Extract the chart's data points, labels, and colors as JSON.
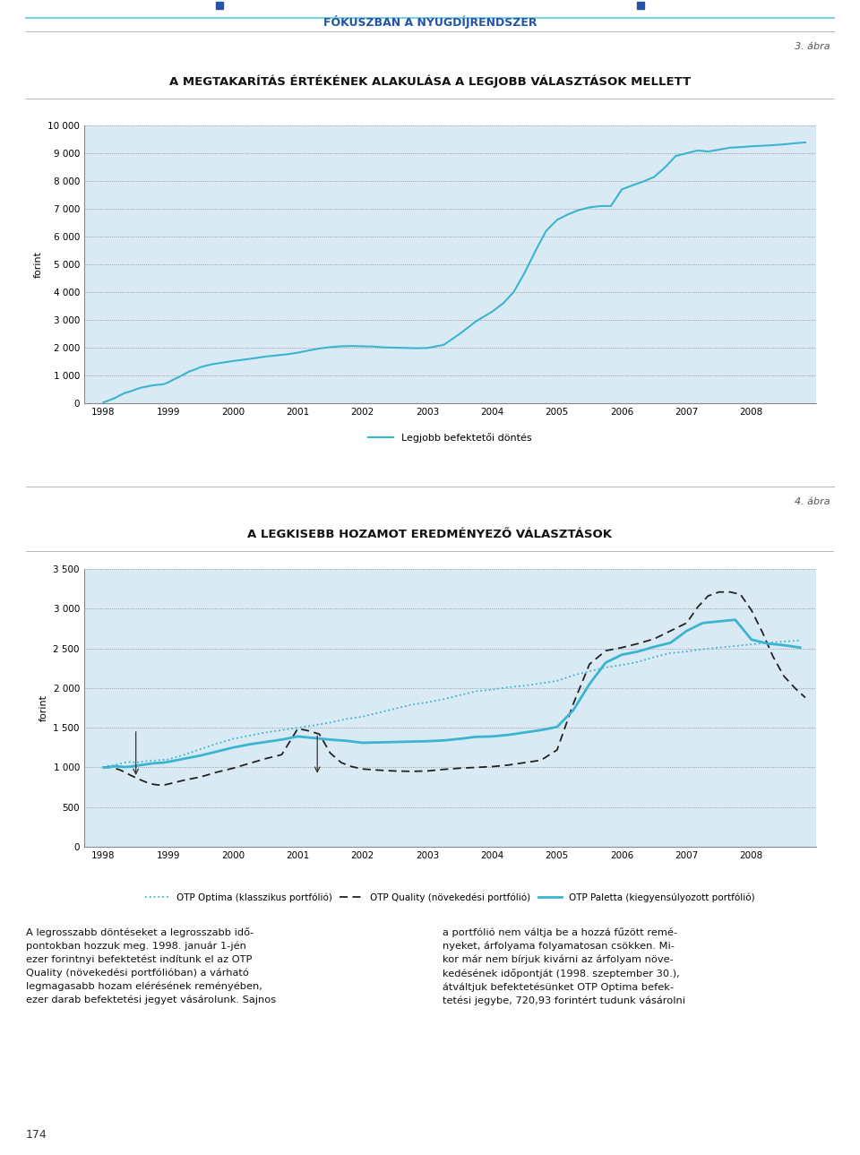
{
  "page_header": "FÓKUSZBAN A NYUGDÍJRENDSZER",
  "fig3_label": "3. ábra",
  "fig3_title": "A MEGTAKARÍTÁS ÉRTÉKÉNEK ALAKULÁSA A LEGJOBB VÁLASZTÁSOK MELLETT",
  "fig4_label": "4. ábra",
  "fig4_title": "A LEGKISEBB HOZAMOT EREDMÉNYEZŐ VÁLASZTÁSOK",
  "ylabel": "forint",
  "chart_bg": "#daeaf5",
  "page_bg": "#ffffff",
  "fig3_ylim": [
    0,
    10000
  ],
  "fig3_yticks": [
    0,
    1000,
    2000,
    3000,
    4000,
    5000,
    6000,
    7000,
    8000,
    9000,
    10000
  ],
  "fig4_ylim": [
    0,
    3500
  ],
  "fig4_yticks": [
    0,
    500,
    1000,
    1500,
    2000,
    2500,
    3000,
    3500
  ],
  "x_years": [
    1998,
    1999,
    2000,
    2001,
    2002,
    2003,
    2004,
    2005,
    2006,
    2007,
    2008
  ],
  "fig3_line_color": "#3ab4d0",
  "fig3_legend_label": "Legjobb befektetői döntés",
  "fig3_data_x": [
    1998.0,
    1998.08,
    1998.17,
    1998.25,
    1998.33,
    1998.42,
    1998.5,
    1998.58,
    1998.67,
    1998.75,
    1998.83,
    1998.92,
    1999.0,
    1999.08,
    1999.17,
    1999.25,
    1999.33,
    1999.42,
    1999.5,
    1999.58,
    1999.67,
    1999.75,
    1999.83,
    1999.92,
    2000.0,
    2000.17,
    2000.33,
    2000.5,
    2000.67,
    2000.83,
    2001.0,
    2001.17,
    2001.33,
    2001.5,
    2001.67,
    2001.83,
    2002.0,
    2002.17,
    2002.33,
    2002.5,
    2002.67,
    2002.83,
    2003.0,
    2003.25,
    2003.5,
    2003.75,
    2004.0,
    2004.17,
    2004.33,
    2004.5,
    2004.67,
    2004.83,
    2005.0,
    2005.17,
    2005.33,
    2005.5,
    2005.67,
    2005.83,
    2006.0,
    2006.17,
    2006.33,
    2006.5,
    2006.67,
    2006.83,
    2007.0,
    2007.17,
    2007.33,
    2007.5,
    2007.67,
    2007.83,
    2008.0,
    2008.17,
    2008.33,
    2008.5,
    2008.67,
    2008.83
  ],
  "fig3_data_y": [
    30,
    100,
    180,
    280,
    370,
    430,
    500,
    560,
    600,
    640,
    660,
    680,
    750,
    850,
    950,
    1050,
    1150,
    1220,
    1300,
    1350,
    1400,
    1430,
    1460,
    1490,
    1520,
    1570,
    1620,
    1680,
    1720,
    1760,
    1820,
    1900,
    1970,
    2020,
    2050,
    2060,
    2050,
    2040,
    2010,
    2000,
    1990,
    1980,
    1990,
    2100,
    2500,
    2950,
    3300,
    3600,
    4000,
    4700,
    5500,
    6200,
    6600,
    6800,
    6950,
    7050,
    7100,
    7100,
    7700,
    7850,
    7980,
    8150,
    8500,
    8900,
    9000,
    9100,
    9060,
    9130,
    9200,
    9220,
    9250,
    9270,
    9290,
    9320,
    9360,
    9390
  ],
  "fig4_optima_x": [
    1998.0,
    1998.08,
    1998.17,
    1998.25,
    1998.33,
    1998.42,
    1998.5,
    1998.58,
    1998.67,
    1998.75,
    1998.83,
    1998.92,
    1999.0,
    1999.25,
    1999.5,
    1999.75,
    2000.0,
    2000.25,
    2000.5,
    2000.75,
    2001.0,
    2001.25,
    2001.5,
    2001.75,
    2002.0,
    2002.25,
    2002.5,
    2002.75,
    2003.0,
    2003.25,
    2003.5,
    2003.75,
    2004.0,
    2004.25,
    2004.5,
    2004.75,
    2005.0,
    2005.25,
    2005.5,
    2005.75,
    2006.0,
    2006.25,
    2006.5,
    2006.75,
    2007.0,
    2007.25,
    2007.5,
    2007.75,
    2008.0,
    2008.25,
    2008.5,
    2008.75
  ],
  "fig4_optima_y": [
    1000,
    1015,
    1030,
    1045,
    1060,
    1070,
    1060,
    1070,
    1080,
    1085,
    1090,
    1095,
    1100,
    1160,
    1230,
    1300,
    1360,
    1400,
    1440,
    1470,
    1500,
    1530,
    1565,
    1610,
    1640,
    1690,
    1740,
    1790,
    1820,
    1860,
    1910,
    1960,
    1980,
    2010,
    2030,
    2060,
    2090,
    2160,
    2210,
    2260,
    2290,
    2330,
    2390,
    2440,
    2460,
    2490,
    2510,
    2530,
    2550,
    2570,
    2585,
    2600
  ],
  "fig4_quality_x": [
    1998.0,
    1998.08,
    1998.17,
    1998.25,
    1998.33,
    1998.42,
    1998.5,
    1998.58,
    1998.67,
    1998.75,
    1998.83,
    1998.92,
    1999.0,
    1999.25,
    1999.5,
    1999.75,
    2000.0,
    2000.25,
    2000.5,
    2000.75,
    2001.0,
    2001.17,
    2001.33,
    2001.5,
    2001.67,
    2001.83,
    2002.0,
    2002.25,
    2002.5,
    2002.75,
    2003.0,
    2003.25,
    2003.5,
    2003.75,
    2004.0,
    2004.25,
    2004.5,
    2004.75,
    2005.0,
    2005.25,
    2005.5,
    2005.75,
    2006.0,
    2006.25,
    2006.5,
    2006.75,
    2007.0,
    2007.17,
    2007.33,
    2007.5,
    2007.67,
    2007.83,
    2008.0,
    2008.17,
    2008.33,
    2008.5,
    2008.67,
    2008.83
  ],
  "fig4_quality_y": [
    1000,
    1010,
    990,
    970,
    940,
    900,
    870,
    840,
    810,
    790,
    780,
    775,
    790,
    840,
    880,
    940,
    990,
    1050,
    1110,
    1160,
    1490,
    1460,
    1420,
    1180,
    1060,
    1010,
    980,
    965,
    955,
    950,
    955,
    975,
    990,
    1000,
    1010,
    1030,
    1060,
    1090,
    1220,
    1800,
    2300,
    2470,
    2510,
    2560,
    2620,
    2720,
    2820,
    3020,
    3160,
    3210,
    3210,
    3180,
    2980,
    2700,
    2400,
    2150,
    2000,
    1880
  ],
  "fig4_paletta_x": [
    1998.0,
    1998.08,
    1998.17,
    1998.25,
    1998.33,
    1998.42,
    1998.5,
    1998.58,
    1998.67,
    1998.75,
    1998.83,
    1998.92,
    1999.0,
    1999.25,
    1999.5,
    1999.75,
    2000.0,
    2000.25,
    2000.5,
    2000.75,
    2001.0,
    2001.25,
    2001.5,
    2001.75,
    2002.0,
    2002.25,
    2002.5,
    2002.75,
    2003.0,
    2003.25,
    2003.5,
    2003.75,
    2004.0,
    2004.25,
    2004.5,
    2004.75,
    2005.0,
    2005.25,
    2005.5,
    2005.75,
    2006.0,
    2006.25,
    2006.5,
    2006.75,
    2007.0,
    2007.25,
    2007.5,
    2007.75,
    2008.0,
    2008.25,
    2008.5,
    2008.75
  ],
  "fig4_paletta_y": [
    1000,
    1000,
    1015,
    1010,
    1005,
    1010,
    1020,
    1030,
    1040,
    1050,
    1055,
    1060,
    1070,
    1110,
    1150,
    1200,
    1250,
    1290,
    1320,
    1350,
    1390,
    1370,
    1350,
    1335,
    1310,
    1315,
    1320,
    1325,
    1330,
    1340,
    1360,
    1385,
    1390,
    1410,
    1440,
    1470,
    1510,
    1720,
    2050,
    2320,
    2420,
    2460,
    2520,
    2570,
    2720,
    2820,
    2840,
    2860,
    2610,
    2560,
    2540,
    2510
  ],
  "legend4_optima": "OTP Optima (klasszikus portfólió)",
  "legend4_quality": "OTP Quality (növekedési portfólió)",
  "legend4_paletta": "OTP Paletta (kiegyensúlyozott portfólió)",
  "page_number": "174",
  "header_line_color": "#7ecfdf",
  "header_text_color": "#2255aa",
  "header_square_color": "#2255aa",
  "divider_color": "#aaaaaa",
  "title_color": "#111111",
  "label_color": "#555555"
}
